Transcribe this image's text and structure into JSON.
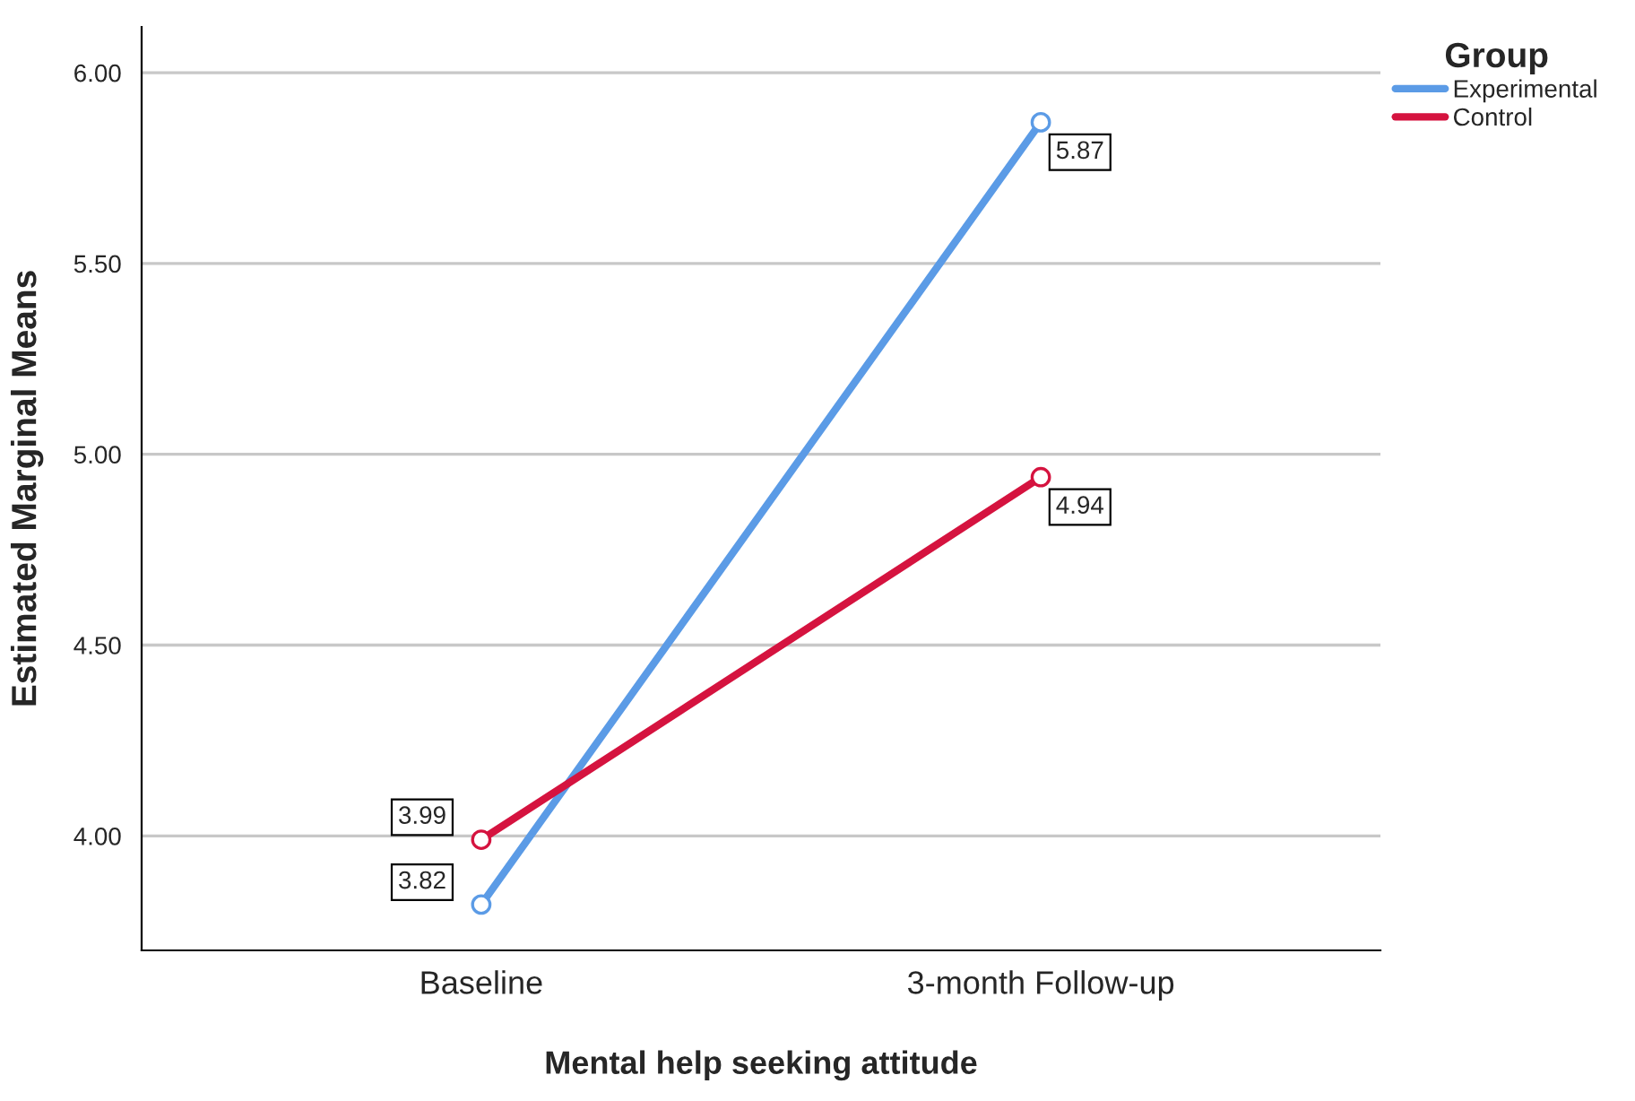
{
  "chart_data": {
    "type": "line",
    "xlabel": "Mental help seeking attitude",
    "ylabel": "Estimated Marginal Means",
    "legend_title": "Group",
    "categories": [
      "Baseline",
      "3-month Follow-up"
    ],
    "series": [
      {
        "name": "Experimental",
        "color": "#5b9be6",
        "values": [
          3.82,
          5.87
        ]
      },
      {
        "name": "Control",
        "color": "#d5133f",
        "values": [
          3.99,
          4.94
        ]
      }
    ],
    "ylim": [
      3.7,
      6.12
    ],
    "yticks": [
      {
        "value": 4.0,
        "label": "4.00"
      },
      {
        "value": 4.5,
        "label": "4.50"
      },
      {
        "value": 5.0,
        "label": "5.00"
      },
      {
        "value": 5.5,
        "label": "5.50"
      },
      {
        "value": 6.0,
        "label": "6.00"
      }
    ],
    "grid": "y",
    "legend": "top right",
    "marker": "circle",
    "line_style": "solid",
    "data_labels": true
  }
}
